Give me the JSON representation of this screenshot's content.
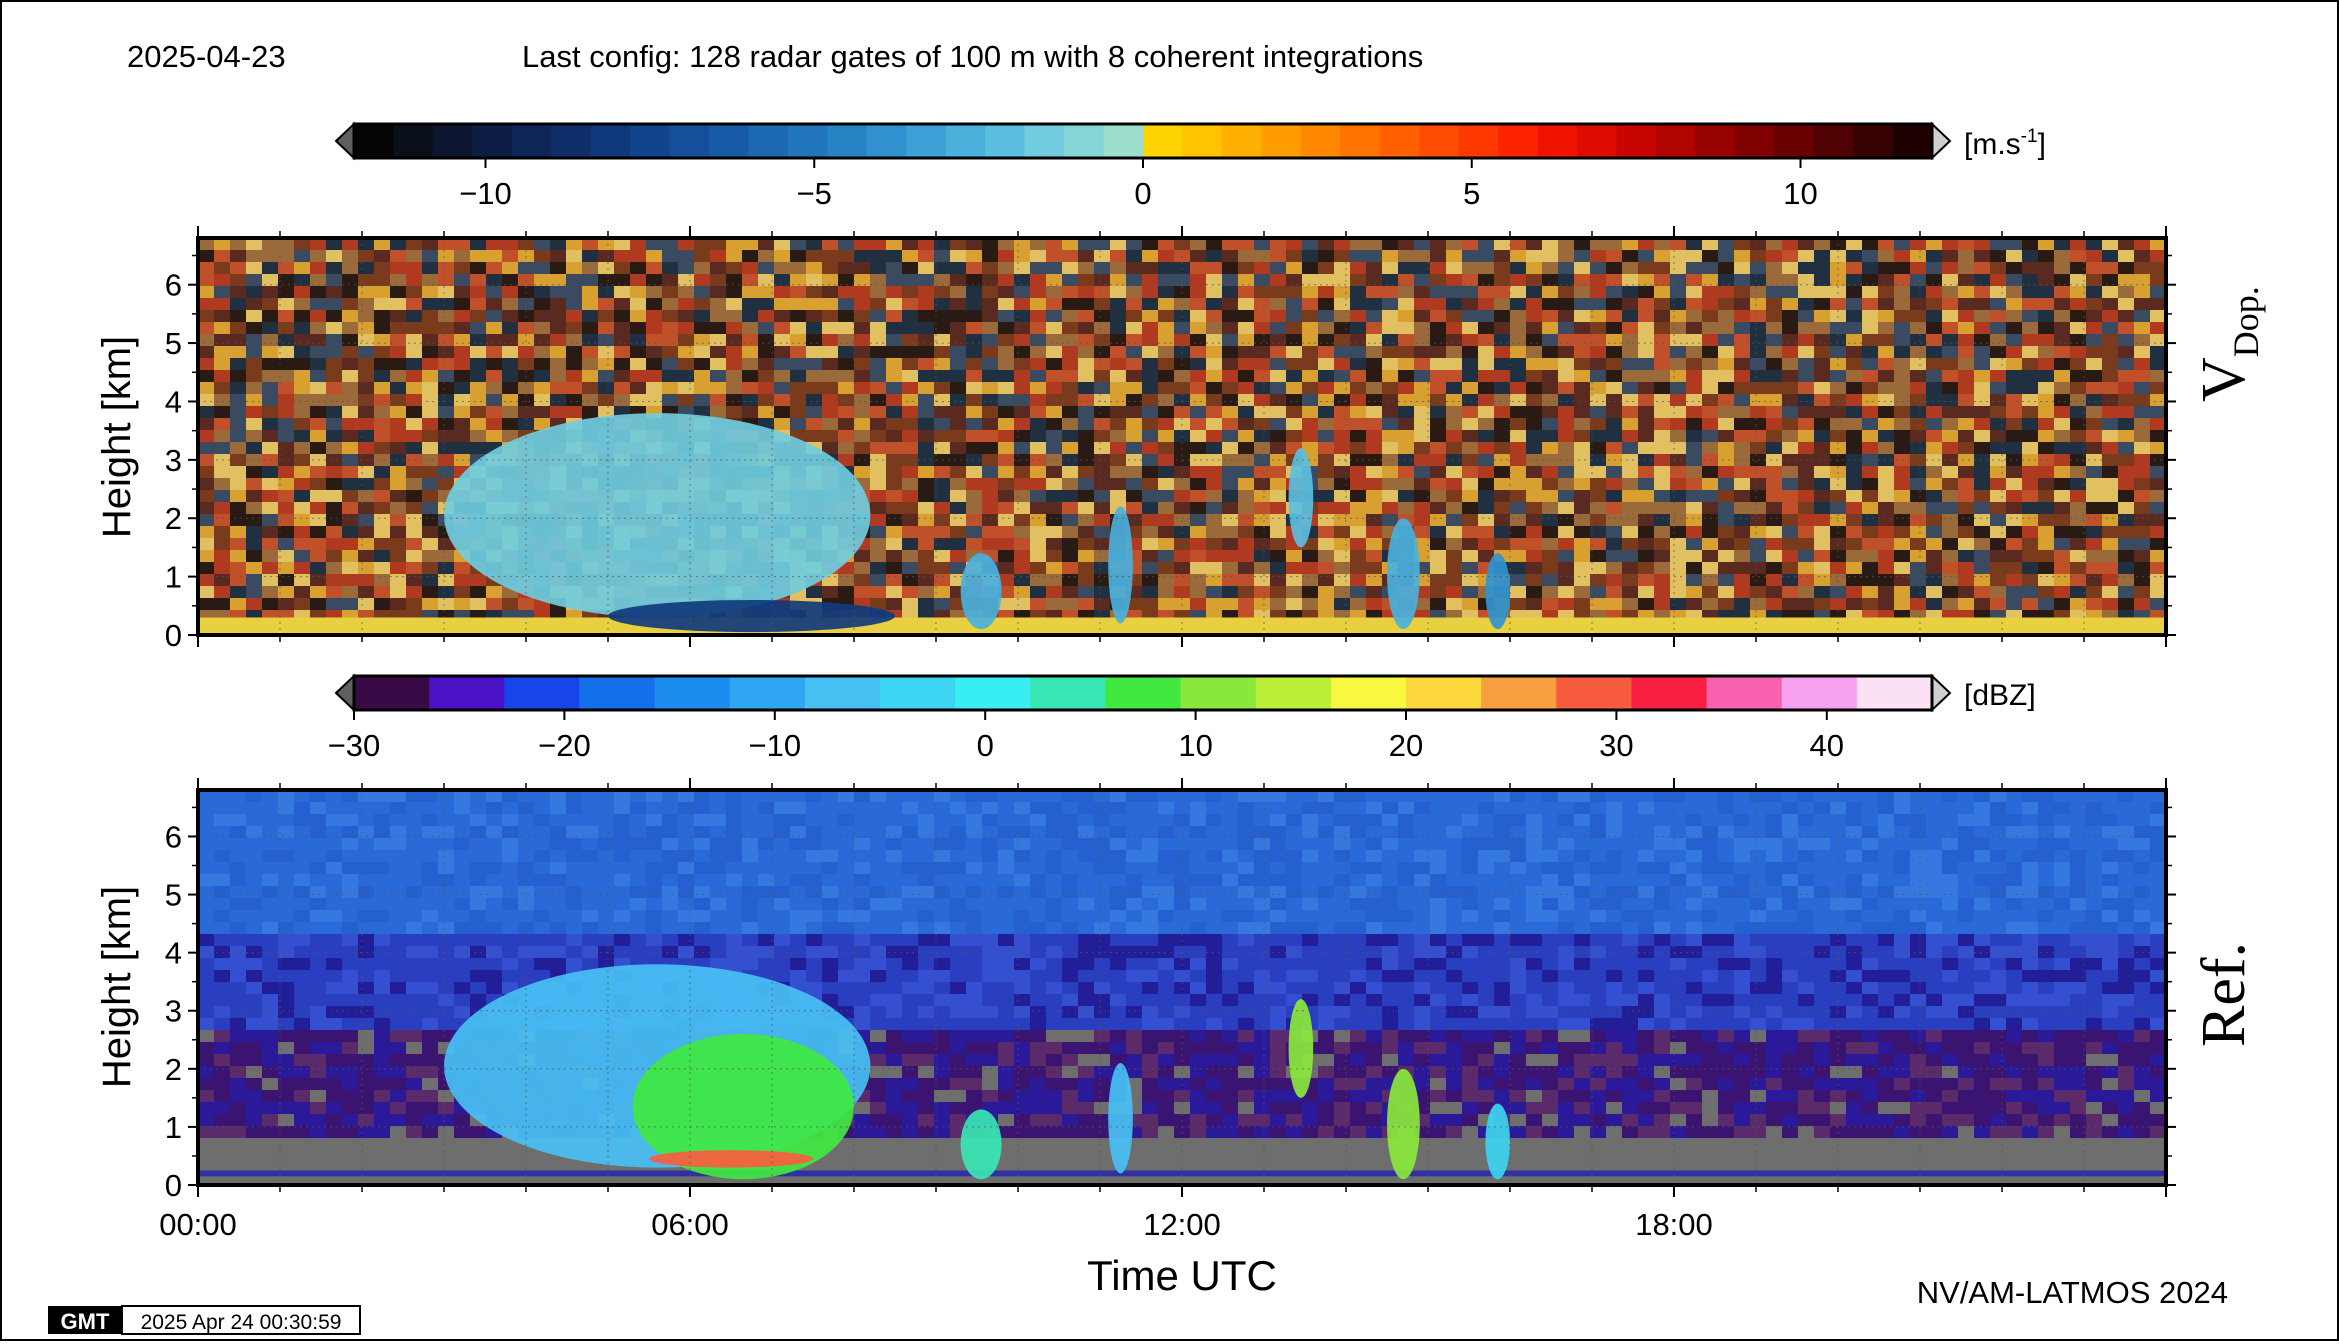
{
  "header": {
    "date": "2025-04-23",
    "config": "Last config: 128 radar gates of 100 m with 8 coherent integrations"
  },
  "footer": {
    "gmt_logo": "GMT",
    "timestamp": "2025 Apr 24 00:30:59",
    "credit": "NV/AM-LATMOS 2024"
  },
  "chart_data": [
    {
      "type": "heatmap",
      "id": "doppler",
      "panel_label_main": "V",
      "panel_label_sub": "Dop.",
      "ylabel": "Height [km]",
      "ylim": [
        0,
        6.8
      ],
      "yticks": [
        "0",
        "1",
        "2",
        "3",
        "4",
        "5",
        "6"
      ],
      "xlim": [
        0,
        24
      ],
      "grid": true,
      "colorbar": {
        "unit_base": "[m.s",
        "unit_sup": "-1",
        "unit_end": "]",
        "range": [
          -12,
          12
        ],
        "ticks": [
          {
            "value": -10,
            "label": "−10"
          },
          {
            "value": -5,
            "label": "−5"
          },
          {
            "value": 0,
            "label": "0"
          },
          {
            "value": 5,
            "label": "5"
          },
          {
            "value": 10,
            "label": "10"
          }
        ],
        "colors": [
          "#050505",
          "#0a0f1c",
          "#0c1630",
          "#0d1d44",
          "#0e2558",
          "#0f2f6a",
          "#10397c",
          "#11448c",
          "#134f9a",
          "#175ba6",
          "#1c68b2",
          "#2276bd",
          "#2984c6",
          "#3292cf",
          "#3da0d6",
          "#4bb0dc",
          "#5cbfdf",
          "#70ccde",
          "#86d6d7",
          "#9cdfcf",
          "#ffd400",
          "#ffc300",
          "#ffb000",
          "#ff9c00",
          "#ff8800",
          "#ff7400",
          "#ff6000",
          "#ff4c00",
          "#ff3800",
          "#ff2400",
          "#f01400",
          "#dd0a00",
          "#c80600",
          "#b00400",
          "#980300",
          "#800200",
          "#680202",
          "#500202",
          "#380202",
          "#200101"
        ],
        "left_triangle": "#606060",
        "right_triangle": "#d0d0d0"
      },
      "features": [
        {
          "t0": 3.0,
          "t1": 8.2,
          "h0": 0.3,
          "h1": 3.8,
          "value": -1.5
        },
        {
          "t0": 5.0,
          "t1": 8.5,
          "h0": 0.05,
          "h1": 0.6,
          "value": -8
        },
        {
          "t0": 9.3,
          "t1": 9.8,
          "h0": 0.1,
          "h1": 1.4,
          "value": -3
        },
        {
          "t0": 11.1,
          "t1": 11.4,
          "h0": 0.2,
          "h1": 2.2,
          "value": -3
        },
        {
          "t0": 13.3,
          "t1": 13.6,
          "h0": 1.5,
          "h1": 3.2,
          "value": -2
        },
        {
          "t0": 14.5,
          "t1": 14.9,
          "h0": 0.1,
          "h1": 2.0,
          "value": -3
        },
        {
          "t0": 15.7,
          "t1": 16.0,
          "h0": 0.1,
          "h1": 1.4,
          "value": -4
        }
      ]
    },
    {
      "type": "heatmap",
      "id": "reflectivity",
      "panel_label_main": "Ref.",
      "ylabel": "Height [km]",
      "xlabel": "Time UTC",
      "ylim": [
        0,
        6.8
      ],
      "yticks": [
        "0",
        "1",
        "2",
        "3",
        "4",
        "5",
        "6"
      ],
      "xlim": [
        0,
        24
      ],
      "xticks": [
        {
          "value": 0,
          "label": "00:00"
        },
        {
          "value": 6,
          "label": "06:00"
        },
        {
          "value": 12,
          "label": "12:00"
        },
        {
          "value": 18,
          "label": "18:00"
        }
      ],
      "grid": true,
      "colorbar": {
        "unit": "[dBZ]",
        "range": [
          -30,
          45
        ],
        "ticks": [
          {
            "value": -30,
            "label": "−30"
          },
          {
            "value": -20,
            "label": "−20"
          },
          {
            "value": -10,
            "label": "−10"
          },
          {
            "value": 0,
            "label": "0"
          },
          {
            "value": 10,
            "label": "10"
          },
          {
            "value": 20,
            "label": "20"
          },
          {
            "value": 30,
            "label": "30"
          },
          {
            "value": 40,
            "label": "40"
          }
        ],
        "colors": [
          "#3a0a46",
          "#4a12c4",
          "#1646e8",
          "#1470ea",
          "#1c8cee",
          "#2ea6f2",
          "#48c0f4",
          "#3cd4f0",
          "#38eef2",
          "#38e6b4",
          "#40e840",
          "#8ae83c",
          "#bcf038",
          "#f8f840",
          "#fcd83c",
          "#f8a040",
          "#f85c40",
          "#f82040",
          "#f860b0",
          "#f8a0f0",
          "#fce0f4"
        ],
        "left_triangle": "#606060",
        "right_triangle": "#d0d0d0"
      },
      "features": [
        {
          "t0": 3.0,
          "t1": 8.2,
          "h0": 0.3,
          "h1": 3.8,
          "value": -8
        },
        {
          "t0": 5.3,
          "t1": 8.0,
          "h0": 0.1,
          "h1": 2.6,
          "value": 8
        },
        {
          "t0": 5.5,
          "t1": 7.5,
          "h0": 0.3,
          "h1": 0.6,
          "value": 28
        },
        {
          "t0": 9.3,
          "t1": 9.8,
          "h0": 0.1,
          "h1": 1.3,
          "value": 4
        },
        {
          "t0": 11.1,
          "t1": 11.4,
          "h0": 0.2,
          "h1": 2.1,
          "value": -6
        },
        {
          "t0": 13.3,
          "t1": 13.6,
          "h0": 1.5,
          "h1": 3.2,
          "value": 12
        },
        {
          "t0": 14.5,
          "t1": 14.9,
          "h0": 0.1,
          "h1": 2.0,
          "value": 12
        },
        {
          "t0": 15.7,
          "t1": 16.0,
          "h0": 0.1,
          "h1": 1.4,
          "value": -2
        }
      ]
    }
  ]
}
